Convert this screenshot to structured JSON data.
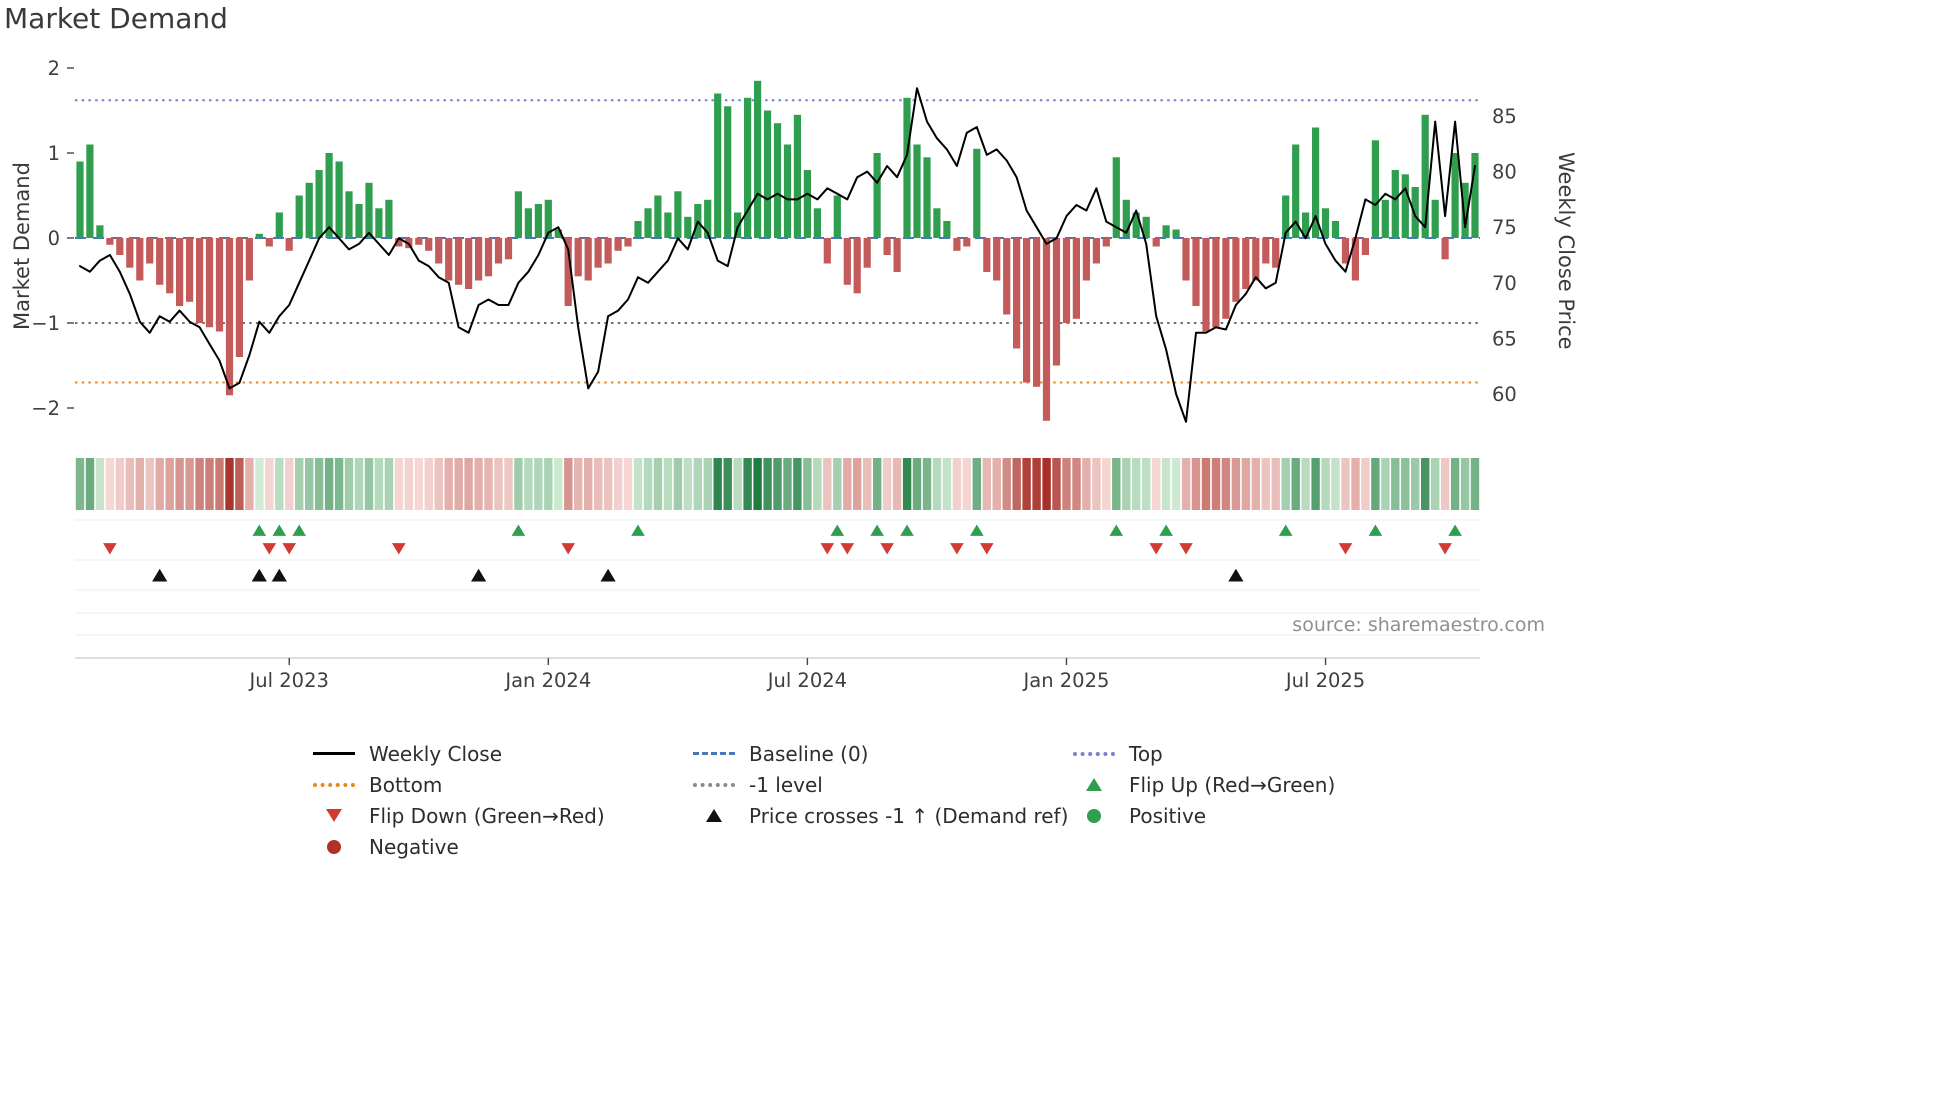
{
  "source_text": "source: sharemaestro.com",
  "chart_data": {
    "type": "bar+line",
    "title": "Market Demand",
    "period_note": "Weekly data, early 2023 to late 2025",
    "grid": false,
    "x": {
      "unit": "week",
      "tick_labels": [
        "Jul 2023",
        "Jan 2024",
        "Jul 2024",
        "Jan 2025",
        "Jul 2025"
      ],
      "tick_indices": [
        21,
        47,
        73,
        99,
        125
      ]
    },
    "left_axis": {
      "label": "Market Demand",
      "ticks": [
        2,
        1,
        0,
        -1,
        -2
      ],
      "range": [
        -2.4,
        2.05
      ]
    },
    "right_axis": {
      "label": "Weekly Close Price",
      "ticks": [
        85,
        80,
        75,
        70,
        65,
        60
      ],
      "range": [
        57,
        88
      ]
    },
    "series": [
      {
        "name": "Market Demand",
        "type": "bar",
        "axis": "left",
        "positive_color": "#2f9e4f",
        "negative_color": "#c45b5b",
        "values": [
          0.9,
          1.1,
          0.15,
          -0.08,
          -0.2,
          -0.35,
          -0.5,
          -0.3,
          -0.55,
          -0.65,
          -0.8,
          -0.75,
          -1.0,
          -1.05,
          -1.1,
          -1.85,
          -1.4,
          -0.5,
          0.05,
          -0.1,
          0.3,
          -0.15,
          0.5,
          0.65,
          0.8,
          1.0,
          0.9,
          0.55,
          0.4,
          0.65,
          0.35,
          0.45,
          -0.1,
          -0.12,
          -0.08,
          -0.15,
          -0.3,
          -0.5,
          -0.55,
          -0.6,
          -0.5,
          -0.45,
          -0.3,
          -0.25,
          0.55,
          0.35,
          0.4,
          0.45,
          0.1,
          -0.8,
          -0.45,
          -0.5,
          -0.35,
          -0.3,
          -0.15,
          -0.1,
          0.2,
          0.35,
          0.5,
          0.3,
          0.55,
          0.25,
          0.4,
          0.45,
          1.7,
          1.55,
          0.3,
          1.65,
          1.85,
          1.5,
          1.35,
          1.1,
          1.45,
          0.8,
          0.35,
          -0.3,
          0.5,
          -0.55,
          -0.65,
          -0.35,
          1.0,
          -0.2,
          -0.4,
          1.65,
          1.1,
          0.95,
          0.35,
          0.2,
          -0.15,
          -0.1,
          1.05,
          -0.4,
          -0.5,
          -0.9,
          -1.3,
          -1.7,
          -1.75,
          -2.15,
          -1.5,
          -1.0,
          -0.95,
          -0.5,
          -0.3,
          -0.1,
          0.95,
          0.45,
          0.3,
          0.25,
          -0.1,
          0.15,
          0.1,
          -0.5,
          -0.8,
          -1.1,
          -1.05,
          -0.95,
          -0.75,
          -0.6,
          -0.5,
          -0.3,
          -0.35,
          0.5,
          1.1,
          0.3,
          1.3,
          0.35,
          0.2,
          -0.3,
          -0.5,
          -0.2,
          1.15,
          0.45,
          0.8,
          0.75,
          0.6,
          1.45,
          0.45,
          -0.25,
          1.0,
          0.65,
          1.0
        ]
      },
      {
        "name": "Weekly Close",
        "type": "line",
        "axis": "right",
        "color": "#000000",
        "values": [
          71.5,
          71.0,
          72.0,
          72.5,
          71.0,
          69.0,
          66.5,
          65.5,
          67.0,
          66.5,
          67.5,
          66.5,
          66.0,
          64.5,
          63.0,
          60.5,
          61.0,
          63.5,
          66.5,
          65.5,
          67.0,
          68.0,
          70.0,
          72.0,
          74.0,
          75.0,
          74.0,
          73.0,
          73.5,
          74.5,
          73.5,
          72.5,
          74.0,
          73.5,
          72.0,
          71.5,
          70.5,
          70.0,
          66.0,
          65.5,
          68.0,
          68.5,
          68.0,
          68.0,
          70.0,
          71.0,
          72.5,
          74.5,
          75.0,
          73.0,
          66.0,
          60.5,
          62.0,
          67.0,
          67.5,
          68.5,
          70.5,
          70.0,
          71.0,
          72.0,
          74.0,
          73.0,
          75.5,
          74.5,
          72.0,
          71.5,
          75.0,
          76.5,
          78.0,
          77.5,
          78.0,
          77.5,
          77.5,
          78.0,
          77.5,
          78.5,
          78.0,
          77.5,
          79.5,
          80.0,
          79.0,
          80.5,
          79.5,
          81.5,
          87.5,
          84.5,
          83.0,
          82.0,
          80.5,
          83.5,
          84.0,
          81.5,
          82.0,
          81.0,
          79.5,
          76.5,
          75.0,
          73.5,
          74.0,
          76.0,
          77.0,
          76.5,
          78.5,
          75.5,
          75.0,
          74.5,
          76.5,
          73.5,
          67.0,
          64.0,
          60.0,
          57.5,
          65.5,
          65.5,
          66.0,
          65.8,
          68.0,
          69.0,
          70.5,
          69.5,
          70.0,
          74.5,
          75.5,
          74.0,
          76.0,
          73.5,
          72.0,
          71.0,
          74.0,
          77.5,
          77.0,
          78.0,
          77.5,
          78.5,
          76.0,
          75.0,
          84.5,
          76.0,
          84.5,
          75.0,
          80.5
        ]
      }
    ],
    "reference_lines": [
      {
        "name": "Top",
        "value": 1.62,
        "axis": "left",
        "style": "dotted",
        "color": "#7b7fd0"
      },
      {
        "name": "Baseline (0)",
        "value": 0,
        "axis": "left",
        "style": "dashed",
        "color": "#4878b8"
      },
      {
        "name": "-1 level",
        "value": -1,
        "axis": "left",
        "style": "dotted",
        "color": "#6f6f6f"
      },
      {
        "name": "Bottom",
        "value": -1.7,
        "axis": "left",
        "style": "dotted",
        "color": "#e8871e"
      }
    ],
    "markers": {
      "flip_up": {
        "label": "Flip Up (Red→Green)",
        "color": "#2f9e4f",
        "weeks": [
          18,
          20,
          22,
          44,
          56,
          76,
          80,
          83,
          90,
          104,
          109,
          121,
          130,
          138
        ]
      },
      "flip_down": {
        "label": "Flip Down (Green→Red)",
        "color": "#d23b33",
        "weeks": [
          3,
          19,
          21,
          32,
          49,
          75,
          77,
          81,
          88,
          91,
          108,
          111,
          127,
          137
        ]
      },
      "price_cross": {
        "label": "Price crosses -1 ↑ (Demand ref)",
        "color": "#111111",
        "weeks": [
          8,
          18,
          20,
          40,
          53,
          116
        ]
      }
    },
    "heatmap": {
      "derived_from": "Market Demand weekly values (sign and magnitude)",
      "positive_color": "#1a7a3e",
      "negative_color": "#a83028"
    }
  },
  "legend": {
    "columns": [
      [
        {
          "label": "Weekly Close",
          "icon": "solid-line",
          "color": "#000000"
        },
        {
          "label": "Bottom",
          "icon": "dotted-line",
          "color": "#e8871e"
        },
        {
          "label": "Flip Down (Green→Red)",
          "icon": "triangle-down",
          "color": "#d23b33"
        },
        {
          "label": "Negative",
          "icon": "circle",
          "color": "#b03226"
        }
      ],
      [
        {
          "label": "Baseline (0)",
          "icon": "dashed-line",
          "color": "#4878b8"
        },
        {
          "label": "-1 level",
          "icon": "dotted-line",
          "color": "#8a8a8a"
        },
        {
          "label": "Price crosses -1 ↑ (Demand ref)",
          "icon": "triangle-up",
          "color": "#111111"
        }
      ],
      [
        {
          "label": "Top",
          "icon": "dotted-line",
          "color": "#7b7fd0"
        },
        {
          "label": "Flip Up (Red→Green)",
          "icon": "triangle-up",
          "color": "#2f9e4f"
        },
        {
          "label": "Positive",
          "icon": "circle",
          "color": "#2f9e4f"
        }
      ]
    ]
  }
}
